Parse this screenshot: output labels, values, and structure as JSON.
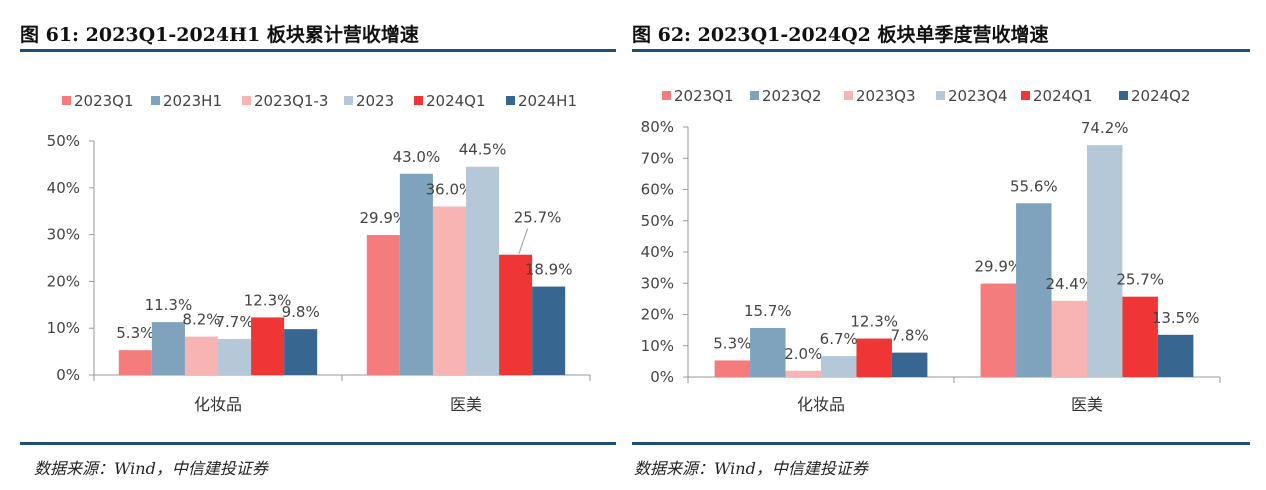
{
  "charts": [
    {
      "figure_title": "图 61: 2023Q1-2024H1 板块累计营收增速",
      "source": "数据来源：Wind，中信建投证券"
    },
    {
      "figure_title": "图 62: 2023Q1-2024Q2 板块单季度营收增速",
      "source": "数据来源：Wind，中信建投证券"
    }
  ],
  "chart_data": [
    {
      "type": "bar",
      "title": "图 61: 2023Q1-2024H1 板块累计营收增速",
      "categories": [
        "化妆品",
        "医美"
      ],
      "series": [
        {
          "name": "2023Q1",
          "color": "#f47c7c",
          "values": [
            5.3,
            29.9
          ],
          "labels": [
            "5.3%",
            "29.9%"
          ]
        },
        {
          "name": "2023H1",
          "color": "#7fa2bd",
          "values": [
            11.3,
            43.0
          ],
          "labels": [
            "11.3%",
            "43.0%"
          ]
        },
        {
          "name": "2023Q1-3",
          "color": "#f8b3b3",
          "values": [
            8.2,
            36.0
          ],
          "labels": [
            "8.2%",
            "36.0%"
          ]
        },
        {
          "name": "2023",
          "color": "#b4c8d8",
          "values": [
            7.7,
            44.5
          ],
          "labels": [
            "7.7%",
            "44.5%"
          ]
        },
        {
          "name": "2024Q1",
          "color": "#f03535",
          "values": [
            12.3,
            25.7
          ],
          "labels": [
            "12.3%",
            "25.7%"
          ]
        },
        {
          "name": "2024H1",
          "color": "#376690",
          "values": [
            9.8,
            18.9
          ],
          "labels": [
            "9.8%",
            "18.9%"
          ]
        }
      ],
      "ylim": [
        0,
        50
      ],
      "yticks": [
        0,
        10,
        20,
        30,
        40,
        50
      ],
      "ytick_labels": [
        "0%",
        "10%",
        "20%",
        "30%",
        "40%",
        "50%"
      ],
      "legend": "top",
      "grid": false
    },
    {
      "type": "bar",
      "title": "图 62: 2023Q1-2024Q2 板块单季度营收增速",
      "categories": [
        "化妆品",
        "医美"
      ],
      "series": [
        {
          "name": "2023Q1",
          "color": "#f47c7c",
          "values": [
            5.3,
            29.9
          ],
          "labels": [
            "5.3%",
            "29.9%"
          ]
        },
        {
          "name": "2023Q2",
          "color": "#7fa2bd",
          "values": [
            15.7,
            55.6
          ],
          "labels": [
            "15.7%",
            "55.6%"
          ]
        },
        {
          "name": "2023Q3",
          "color": "#f8b3b3",
          "values": [
            2.0,
            24.4
          ],
          "labels": [
            "2.0%",
            "24.4%"
          ]
        },
        {
          "name": "2023Q4",
          "color": "#b4c8d8",
          "values": [
            6.7,
            74.2
          ],
          "labels": [
            "6.7%",
            "74.2%"
          ]
        },
        {
          "name": "2024Q1",
          "color": "#f03535",
          "values": [
            12.3,
            25.7
          ],
          "labels": [
            "12.3%",
            "25.7%"
          ]
        },
        {
          "name": "2024Q2",
          "color": "#376690",
          "values": [
            7.8,
            13.5
          ],
          "labels": [
            "7.8%",
            "13.5%"
          ]
        }
      ],
      "ylim": [
        0,
        80
      ],
      "yticks": [
        0,
        10,
        20,
        30,
        40,
        50,
        60,
        70,
        80
      ],
      "ytick_labels": [
        "0%",
        "10%",
        "20%",
        "30%",
        "40%",
        "50%",
        "60%",
        "70%",
        "80%"
      ],
      "legend": "top",
      "grid": false
    }
  ]
}
